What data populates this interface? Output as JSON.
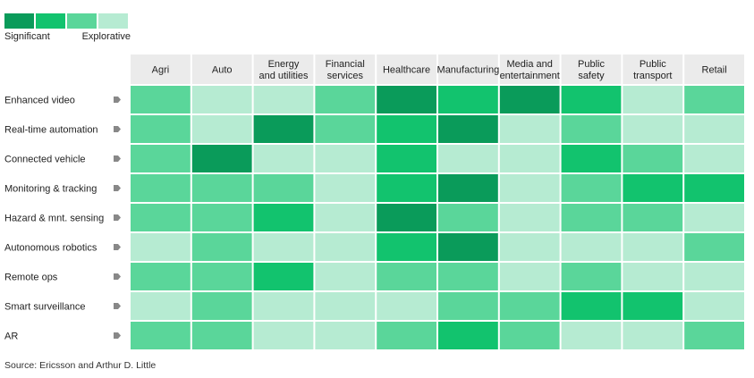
{
  "legend": {
    "left_label": "Significant",
    "right_label": "Explorative",
    "colors": [
      "#0a9b5a",
      "#12c36e",
      "#5ad69a",
      "#b6ebd2"
    ]
  },
  "chart_data": {
    "type": "heatmap",
    "columns": [
      [
        "Agri"
      ],
      [
        "Auto"
      ],
      [
        "Energy",
        "and utilities"
      ],
      [
        "Financial",
        "services"
      ],
      [
        "Healthcare"
      ],
      [
        "Manufacturing"
      ],
      [
        "Media and",
        "entertainment"
      ],
      [
        "Public",
        "safety"
      ],
      [
        "Public",
        "transport"
      ],
      [
        "Retail"
      ]
    ],
    "rows": [
      "Enhanced video",
      "Real-time automation",
      "Connected vehicle",
      "Monitoring & tracking",
      "Hazard & mnt. sensing",
      "Autonomous robotics",
      "Remote ops",
      "Smart surveillance",
      "AR"
    ],
    "scale_levels": 4,
    "scale_note": "1 = Significant (darkest), 4 = Explorative (lightest)",
    "values": [
      [
        3,
        4,
        4,
        3,
        1,
        2,
        1,
        2,
        4,
        3
      ],
      [
        3,
        4,
        1,
        3,
        2,
        1,
        4,
        3,
        4,
        4
      ],
      [
        3,
        1,
        4,
        4,
        2,
        4,
        4,
        2,
        3,
        4
      ],
      [
        3,
        3,
        3,
        4,
        2,
        1,
        4,
        3,
        2,
        2
      ],
      [
        3,
        3,
        2,
        4,
        1,
        3,
        4,
        3,
        3,
        4
      ],
      [
        4,
        3,
        4,
        4,
        2,
        1,
        4,
        4,
        4,
        3
      ],
      [
        3,
        3,
        2,
        4,
        3,
        3,
        4,
        3,
        4,
        4
      ],
      [
        4,
        3,
        4,
        4,
        4,
        3,
        3,
        2,
        2,
        4
      ],
      [
        3,
        3,
        4,
        4,
        3,
        2,
        3,
        4,
        4,
        3
      ]
    ]
  },
  "source": "Source: Ericsson and Arthur D. Little"
}
